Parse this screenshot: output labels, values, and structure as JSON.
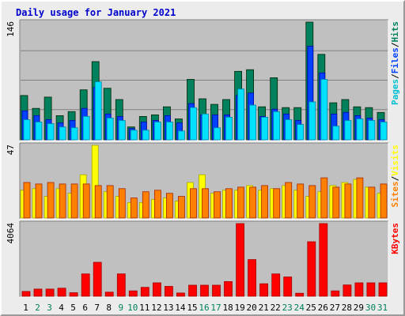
{
  "chart_data": {
    "type": "bar",
    "title": "Daily usage for January 2021",
    "categories": [
      "1",
      "2",
      "3",
      "4",
      "5",
      "6",
      "7",
      "8",
      "9",
      "10",
      "11",
      "12",
      "13",
      "14",
      "15",
      "16",
      "17",
      "18",
      "19",
      "20",
      "21",
      "22",
      "23",
      "24",
      "25",
      "26",
      "27",
      "28",
      "29",
      "30",
      "31"
    ],
    "weekend_days": [
      "2",
      "3",
      "9",
      "10",
      "16",
      "17",
      "23",
      "24",
      "30",
      "31"
    ],
    "colors": {
      "hits": "#00805c",
      "files": "#0040ff",
      "pages": "#00e0ff",
      "visits": "#ffff00",
      "sites": "#ff8000",
      "kbytes": "#ff0000",
      "plot_bg": "#c0c0c0",
      "frame_bg": "#ececec",
      "title": "#0000cc",
      "weekday_label": "#000000",
      "weekend_label": "#00805c"
    },
    "panels": [
      {
        "id": "hits_files_pages",
        "ymax_label": "146",
        "ylim": [
          0,
          146
        ],
        "legend": [
          {
            "text": "Pages",
            "color": "#00c0d0"
          },
          {
            "text": "Files",
            "color": "#0040ff"
          },
          {
            "text": "Hits",
            "color": "#00805c"
          }
        ],
        "series": [
          {
            "name": "Hits",
            "color": "#00805c",
            "values": [
              55,
              39,
              53,
              30,
              35,
              62,
              97,
              64,
              50,
              16,
              29,
              31,
              41,
              26,
              75,
              51,
              44,
              50,
              85,
              87,
              41,
              77,
              40,
              40,
              146,
              106,
              46,
              50,
              41,
              40,
              34
            ]
          },
          {
            "name": "Files",
            "color": "#0040ff",
            "values": [
              36,
              30,
              25,
              21,
              24,
              39,
              65,
              32,
              29,
              14,
              22,
              24,
              30,
              21,
              45,
              31,
              31,
              31,
              55,
              58,
              29,
              38,
              32,
              24,
              116,
              83,
              32,
              34,
              30,
              27,
              25
            ]
          },
          {
            "name": "Pages",
            "color": "#00e0ff",
            "values": [
              25,
              22,
              20,
              16,
              15,
              29,
              72,
              27,
              24,
              12,
              12,
              22,
              22,
              11,
              40,
              32,
              15,
              28,
              63,
              43,
              28,
              35,
              25,
              19,
              47,
              75,
              17,
              24,
              26,
              24,
              22
            ]
          }
        ]
      },
      {
        "id": "visits_sites",
        "ymax_label": "47",
        "ylim": [
          0,
          47
        ],
        "legend": [
          {
            "text": "Sites",
            "color": "#ff8000"
          },
          {
            "text": "Visits",
            "color": "#ffff00"
          }
        ],
        "series": [
          {
            "name": "Visits",
            "color": "#ffff00",
            "values": [
              18,
              19,
              14,
              19,
              16,
              28,
              47,
              17,
              14,
              10,
              10,
              12,
              13,
              11,
              23,
              28,
              16,
              18,
              18,
              21,
              18,
              19,
              21,
              18,
              14,
              17,
              21,
              23,
              25,
              20,
              16
            ]
          },
          {
            "name": "Sites",
            "color": "#ff8000",
            "values": [
              23,
              22,
              23,
              22,
              22,
              22,
              21,
              21,
              19,
              13,
              17,
              18,
              16,
              14,
              19,
              19,
              17,
              19,
              20,
              20,
              21,
              19,
              23,
              22,
              21,
              26,
              20,
              22,
              26,
              20,
              22
            ]
          }
        ]
      },
      {
        "id": "kbytes",
        "ymax_label": "4064",
        "ylim": [
          0,
          4064
        ],
        "legend": [
          {
            "text": "KBytes",
            "color": "#ff0000"
          }
        ],
        "series": [
          {
            "name": "KBytes",
            "color": "#ff0000",
            "values": [
              270,
              400,
              400,
              450,
              200,
              1250,
              1900,
              230,
              1250,
              300,
              500,
              750,
              550,
              180,
              620,
              620,
              620,
              820,
              4064,
              2050,
              700,
              1250,
              1080,
              170,
              3050,
              4064,
              300,
              630,
              750,
              750,
              750
            ]
          }
        ]
      }
    ]
  }
}
